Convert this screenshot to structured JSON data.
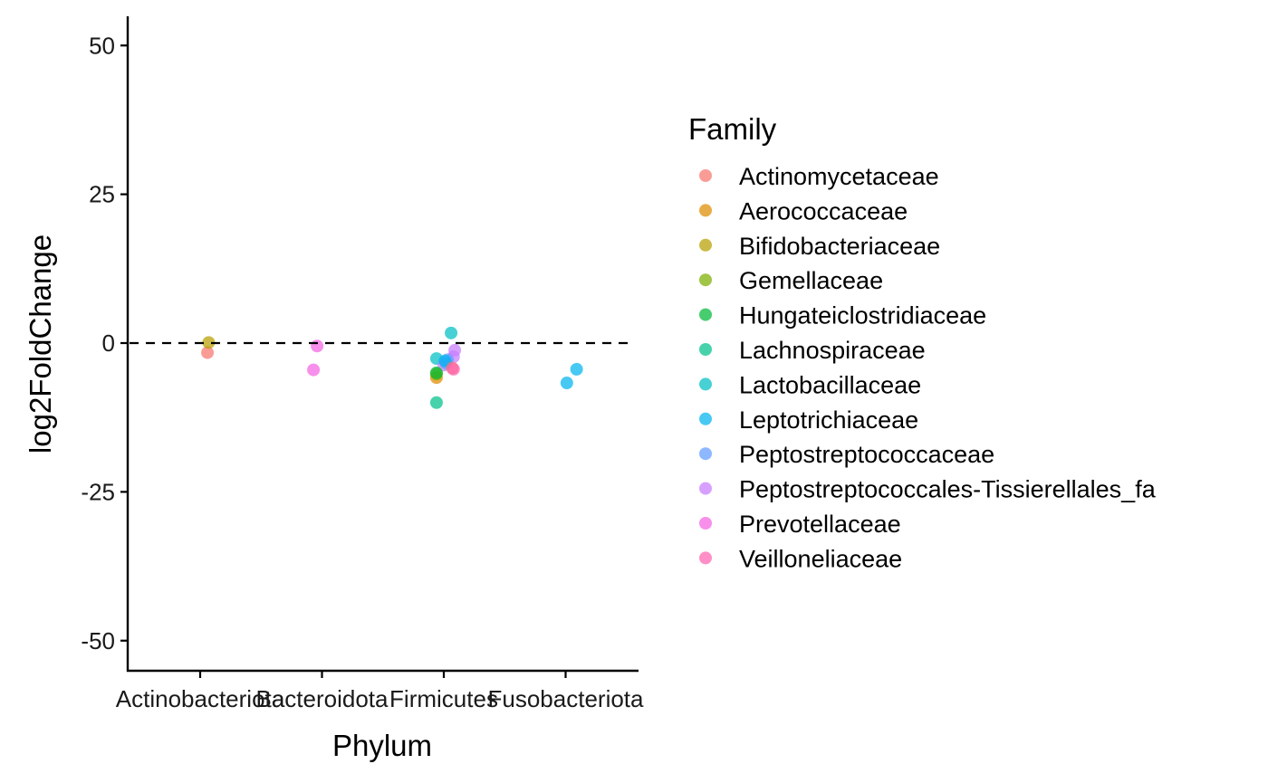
{
  "chart_data": {
    "type": "scatter",
    "xlabel": "Phylum",
    "ylabel": "log2FoldChange",
    "categories": [
      "Actinobacteriota",
      "Bacteroidota",
      "Firmicutes",
      "Fusobacteriota"
    ],
    "ylim": [
      -55,
      55
    ],
    "yticks": [
      50,
      25,
      0,
      -25,
      -50
    ],
    "ytick_labels": [
      "50",
      "25",
      "0",
      "-25",
      "-50"
    ],
    "reference_line": {
      "y": 0,
      "style": "dashed"
    },
    "grid": false,
    "legend": {
      "title": "Family",
      "position": "right",
      "entries": [
        {
          "name": "Actinomycetaceae",
          "color": "#F8766D"
        },
        {
          "name": "Aerococcaceae",
          "color": "#DE8C00"
        },
        {
          "name": "Bifidobacteriaceae",
          "color": "#B79F00"
        },
        {
          "name": "Gemellaceae",
          "color": "#7CAE00"
        },
        {
          "name": "Hungateiclostridiaceae",
          "color": "#00BA38"
        },
        {
          "name": "Lachnospiraceae",
          "color": "#00C08B"
        },
        {
          "name": "Lactobacillaceae",
          "color": "#00BFC4"
        },
        {
          "name": "Leptotrichiaceae",
          "color": "#00B4F0"
        },
        {
          "name": "Peptostreptococcaceae",
          "color": "#619CFF"
        },
        {
          "name": "Peptostreptococcales-Tissierellales_fa",
          "color": "#C77CFF"
        },
        {
          "name": "Prevotellaceae",
          "color": "#F564E3"
        },
        {
          "name": "Veilloneliaceae",
          "color": "#FF64B0"
        }
      ]
    },
    "points": [
      {
        "phylum": "Actinobacteriota",
        "family": "Actinomycetaceae",
        "jitter": 0.06,
        "y": -1.6
      },
      {
        "phylum": "Actinobacteriota",
        "family": "Bifidobacteriaceae",
        "jitter": 0.07,
        "y": 0.1
      },
      {
        "phylum": "Bacteroidota",
        "family": "Prevotellaceae",
        "jitter": -0.07,
        "y": -4.5
      },
      {
        "phylum": "Bacteroidota",
        "family": "Prevotellaceae",
        "jitter": -0.04,
        "y": -0.5
      },
      {
        "phylum": "Firmicutes",
        "family": "Lactobacillaceae",
        "jitter": 0.06,
        "y": 1.7
      },
      {
        "phylum": "Firmicutes",
        "family": "Lactobacillaceae",
        "jitter": -0.06,
        "y": -2.6
      },
      {
        "phylum": "Firmicutes",
        "family": "Peptostreptococcales-Tissierellales_fa",
        "jitter": 0.09,
        "y": -1.2
      },
      {
        "phylum": "Firmicutes",
        "family": "Peptostreptococcales-Tissierellales_fa",
        "jitter": 0.08,
        "y": -2.3
      },
      {
        "phylum": "Firmicutes",
        "family": "Peptostreptococcales-Tissierellales_fa",
        "jitter": 0.0,
        "y": -3.7
      },
      {
        "phylum": "Firmicutes",
        "family": "Peptostreptococcaceae",
        "jitter": 0.03,
        "y": -2.8
      },
      {
        "phylum": "Firmicutes",
        "family": "Peptostreptococcaceae",
        "jitter": 0.02,
        "y": -3.4
      },
      {
        "phylum": "Firmicutes",
        "family": "Leptotrichiaceae",
        "jitter": 0.01,
        "y": -3.0
      },
      {
        "phylum": "Firmicutes",
        "family": "Actinomycetaceae",
        "jitter": 0.07,
        "y": -4.2
      },
      {
        "phylum": "Firmicutes",
        "family": "Veilloneliaceae",
        "jitter": 0.08,
        "y": -4.4
      },
      {
        "phylum": "Firmicutes",
        "family": "Aerococcaceae",
        "jitter": -0.06,
        "y": -5.8
      },
      {
        "phylum": "Firmicutes",
        "family": "Gemellaceae",
        "jitter": -0.06,
        "y": -5.2
      },
      {
        "phylum": "Firmicutes",
        "family": "Hungateiclostridiaceae",
        "jitter": -0.06,
        "y": -5.0
      },
      {
        "phylum": "Firmicutes",
        "family": "Lachnospiraceae",
        "jitter": -0.06,
        "y": -10.0
      },
      {
        "phylum": "Fusobacteriota",
        "family": "Leptotrichiaceae",
        "jitter": 0.09,
        "y": -4.4
      },
      {
        "phylum": "Fusobacteriota",
        "family": "Leptotrichiaceae",
        "jitter": 0.01,
        "y": -6.7
      }
    ]
  }
}
